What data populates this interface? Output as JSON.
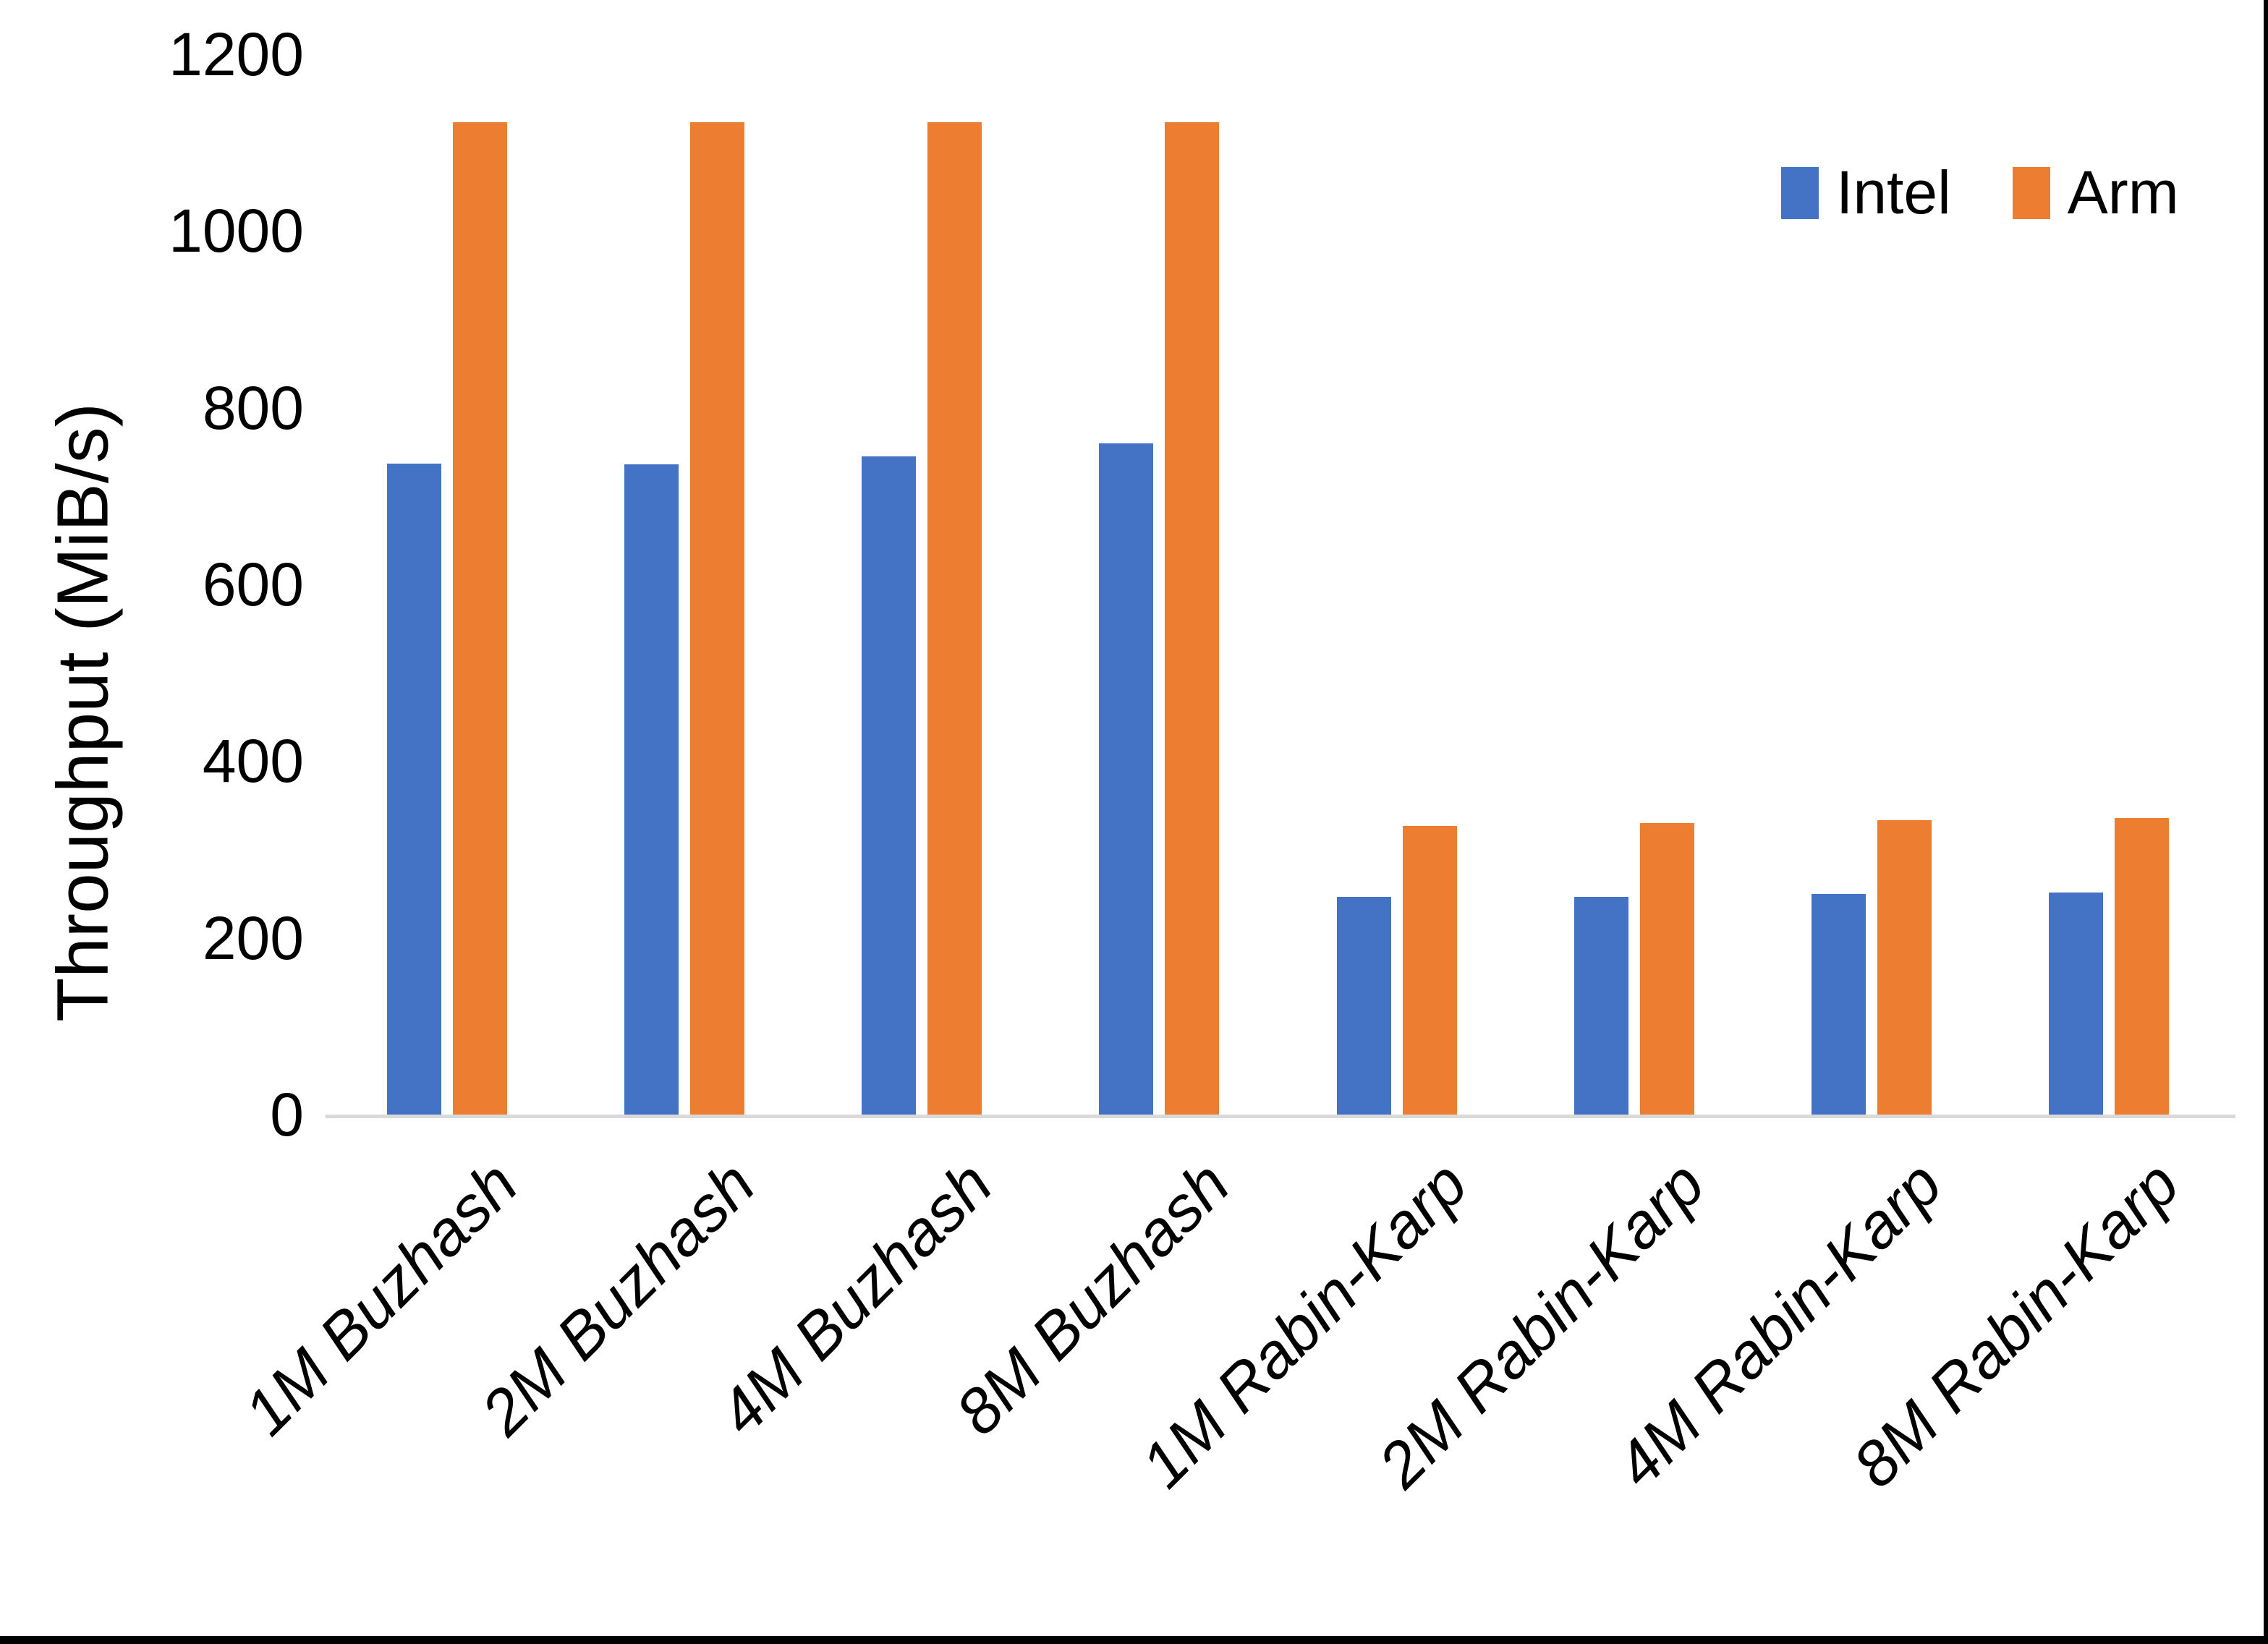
{
  "colors": {
    "intel": "#4472C4",
    "arm": "#ED7D31",
    "axis_line": "#D9D9D9",
    "text": "#000000",
    "background": "#FFFFFF",
    "frame_border": "#000000"
  },
  "chart_data": {
    "type": "bar",
    "title": "",
    "xlabel": "",
    "ylabel": "Throughput (MiB/s)",
    "ylim": [
      0,
      1200
    ],
    "yticks": [
      0,
      200,
      400,
      600,
      800,
      1000,
      1200
    ],
    "grid": false,
    "legend_position": "top-right",
    "categories": [
      "1M Buzhash",
      "2M Buzhash",
      "4M Buzhash",
      "8M Buzhash",
      "1M Rabin-Karp",
      "2M Rabin-Karp",
      "4M Rabin-Karp",
      "8M Rabin-Karp"
    ],
    "series": [
      {
        "name": "Intel",
        "color": "#4472C4",
        "values": [
          737,
          736,
          745,
          760,
          246,
          246,
          250,
          251
        ]
      },
      {
        "name": "Arm",
        "color": "#ED7D31",
        "values": [
          1123,
          1123,
          1123,
          1123,
          327,
          330,
          333,
          336
        ]
      }
    ]
  }
}
